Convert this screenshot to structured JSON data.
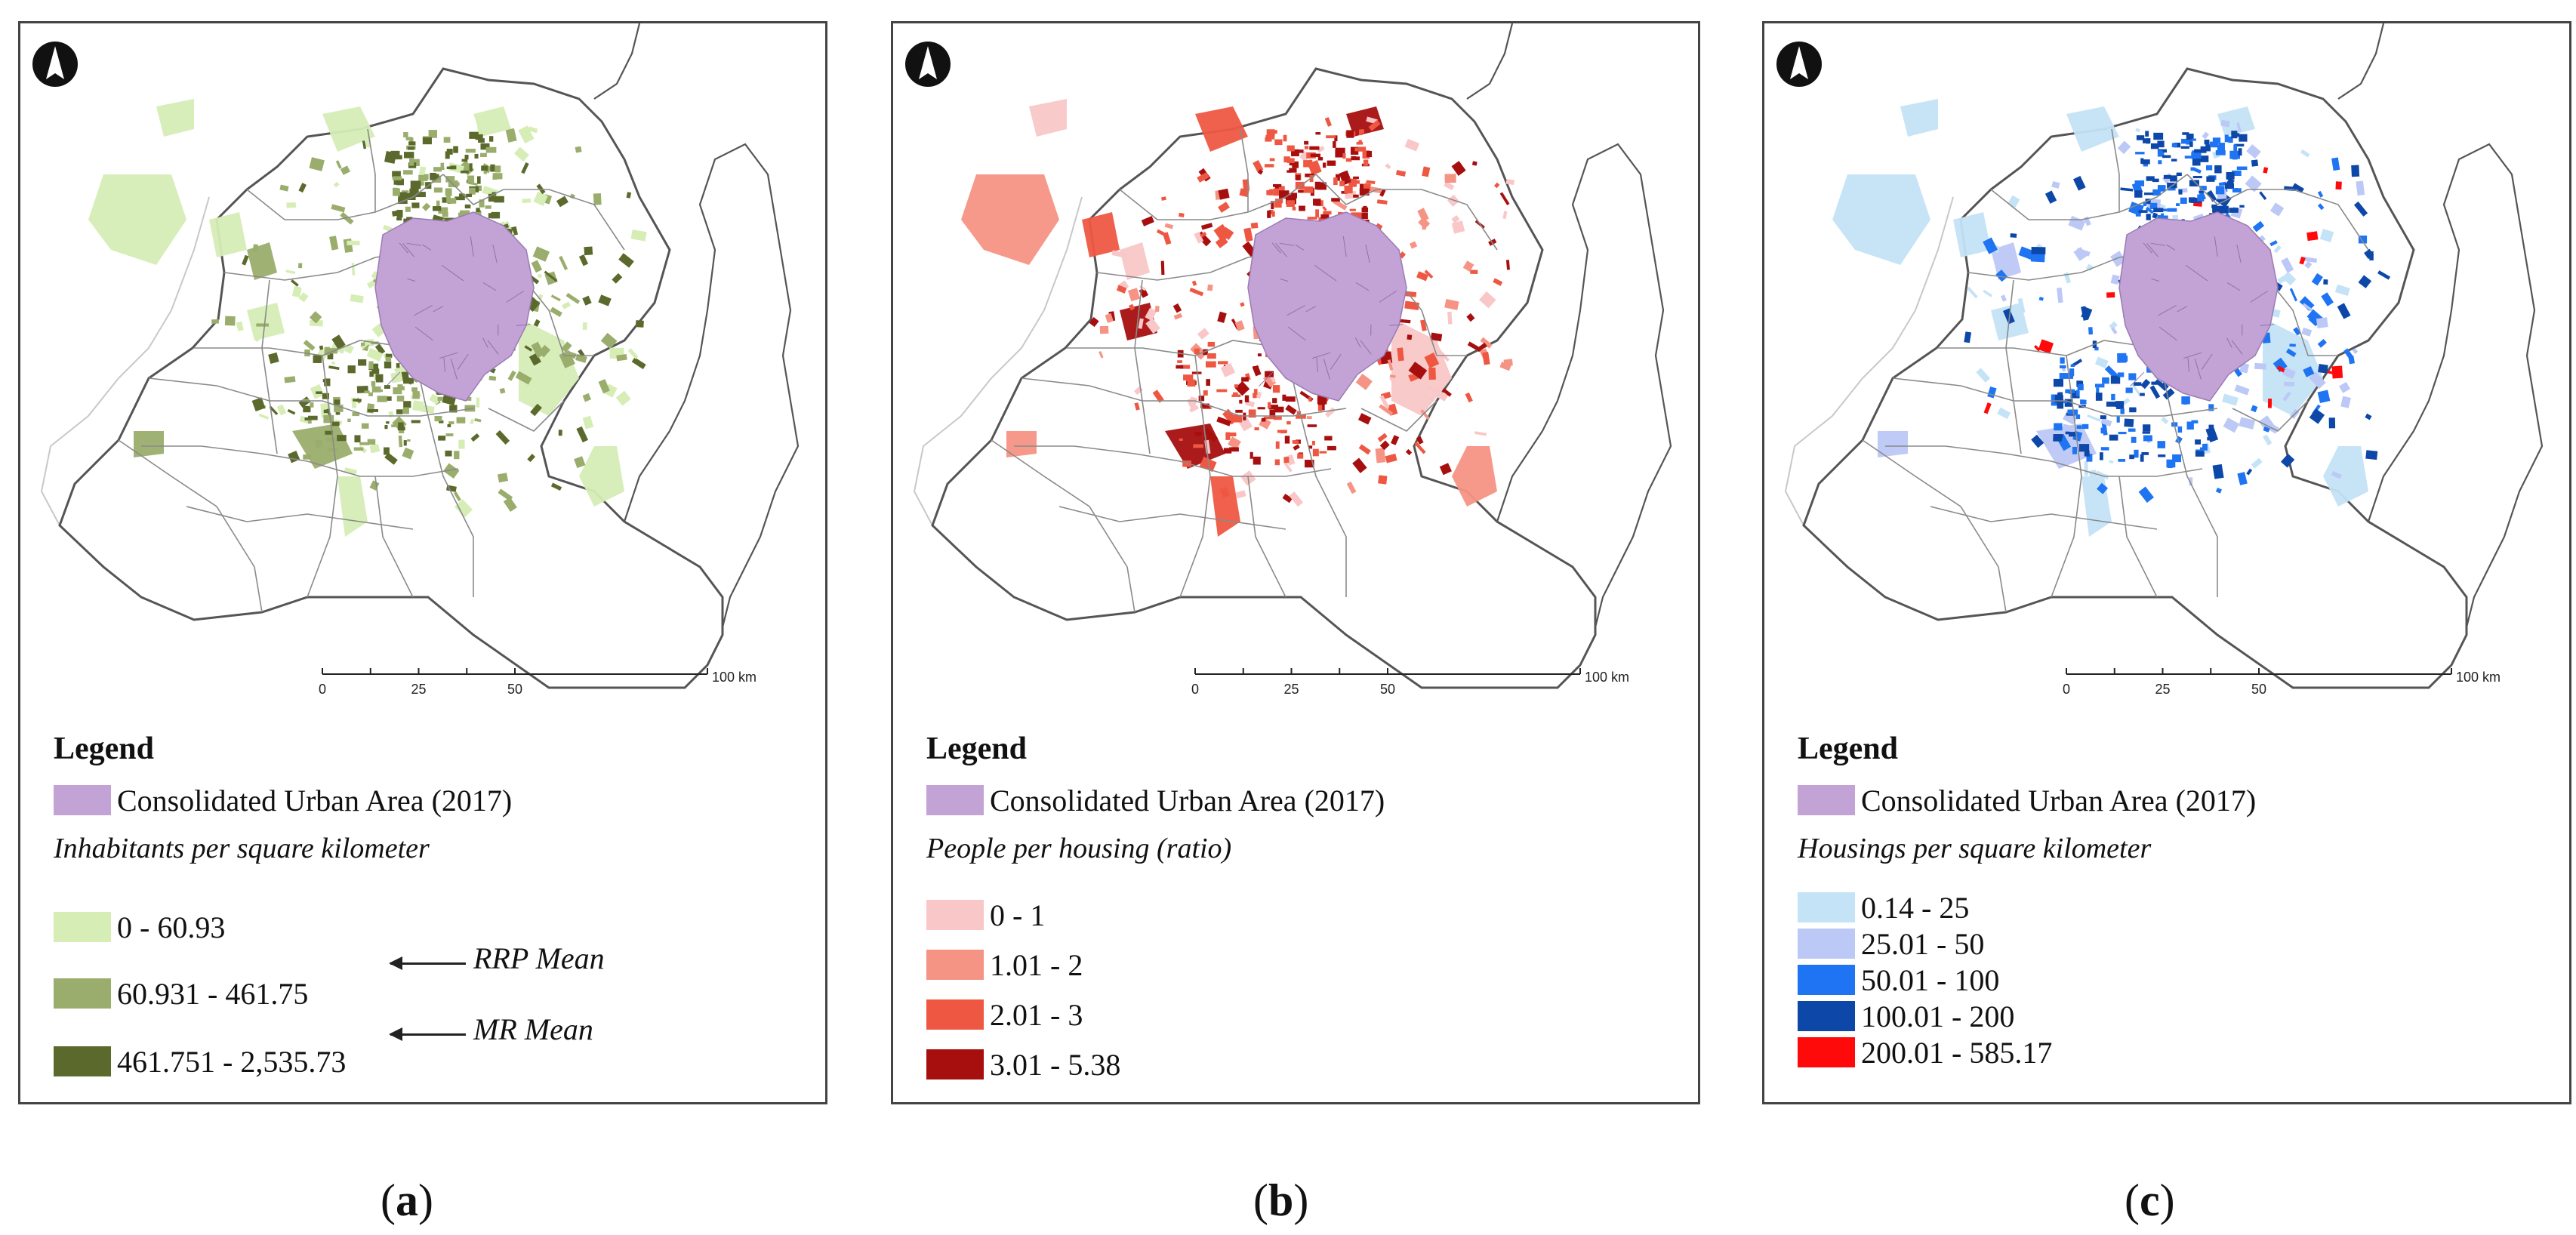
{
  "panels": [
    {
      "id": "a",
      "caption_open": "(",
      "caption_letter": "a",
      "caption_close": ")",
      "scale": {
        "ticks": [
          "0",
          "25",
          "50"
        ],
        "end_label": "100 km"
      },
      "legend": {
        "title": "Legend",
        "urban": {
          "label": "Consolidated Urban Area (2017)",
          "color": "#c3a3d6"
        },
        "subtitle": "Inhabitants per square kilometer",
        "classes": [
          {
            "label": "0 - 60.93",
            "color": "#d6edb6"
          },
          {
            "label": "60.931 - 461.75",
            "color": "#9aad6c"
          },
          {
            "label": "461.751 - 2,535.73",
            "color": "#5b6a2c"
          }
        ],
        "annotations": [
          "RRP Mean",
          "MR Mean"
        ]
      },
      "fill_palette": [
        "#d6edb6",
        "#9aad6c",
        "#5b6a2c"
      ]
    },
    {
      "id": "b",
      "caption_open": "(",
      "caption_letter": "b",
      "caption_close": ")",
      "scale": {
        "ticks": [
          "0",
          "25",
          "50"
        ],
        "end_label": "100 km"
      },
      "legend": {
        "title": "Legend",
        "urban": {
          "label": "Consolidated Urban Area (2017)",
          "color": "#c3a3d6"
        },
        "subtitle": "People per housing (ratio)",
        "classes": [
          {
            "label": "0 - 1",
            "color": "#f9c7c7"
          },
          {
            "label": "1.01 - 2",
            "color": "#f59484"
          },
          {
            "label": "2.01 - 3",
            "color": "#ee5843"
          },
          {
            "label": "3.01 - 5.38",
            "color": "#a70f0f"
          }
        ],
        "annotations": []
      },
      "fill_palette": [
        "#f9c7c7",
        "#f59484",
        "#ee5843",
        "#a70f0f"
      ]
    },
    {
      "id": "c",
      "caption_open": "(",
      "caption_letter": "c",
      "caption_close": ")",
      "scale": {
        "ticks": [
          "0",
          "25",
          "50"
        ],
        "end_label": "100 km"
      },
      "legend": {
        "title": "Legend",
        "urban": {
          "label": "Consolidated Urban Area (2017)",
          "color": "#c3a3d6"
        },
        "subtitle": "Housings per square kilometer",
        "classes": [
          {
            "label": "0.14 - 25",
            "color": "#c4e3f7"
          },
          {
            "label": "25.01 - 50",
            "color": "#bcc8f6"
          },
          {
            "label": "50.01 - 100",
            "color": "#1e74f2"
          },
          {
            "label": "100.01 - 200",
            "color": "#0d47a8"
          },
          {
            "label": "200.01 - 585.17",
            "color": "#ff0a0a"
          }
        ],
        "annotations": []
      },
      "fill_palette": [
        "#c4e3f7",
        "#bcc8f6",
        "#1e74f2",
        "#0d47a8"
      ]
    }
  ],
  "map_colors": {
    "boundary": "#8a8a8a",
    "outer_boundary": "#555555",
    "urban": "#c3a3d6",
    "north_arrow": "#111111"
  },
  "icons": {
    "north_arrow": "north-arrow-icon"
  }
}
